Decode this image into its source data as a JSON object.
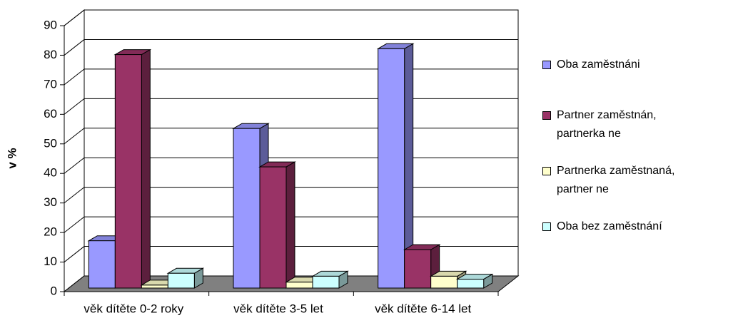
{
  "chart_data": {
    "type": "bar3d",
    "y_label": "v %",
    "categories": [
      "věk dítěte 0-2 roky",
      "věk dítěte 3-5 let",
      "věk dítěte 6-14 let"
    ],
    "series": [
      {
        "name": "Oba zaměstnáni",
        "color": "#9999ff",
        "values": [
          16,
          54,
          81
        ]
      },
      {
        "name": "Partner zaměstnán, partnerka ne",
        "color": "#993366",
        "values": [
          79,
          41,
          13
        ]
      },
      {
        "name": "Partnerka zaměstnaná, partner ne",
        "color": "#ffffcc",
        "values": [
          1,
          2,
          4
        ]
      },
      {
        "name": "Oba bez zaměstnání",
        "color": "#ccffff",
        "values": [
          5,
          4,
          3
        ]
      }
    ],
    "ylim": [
      0,
      90
    ],
    "yticks": [
      0,
      10,
      20,
      30,
      40,
      50,
      60,
      70,
      80,
      90
    ],
    "grid": true
  }
}
